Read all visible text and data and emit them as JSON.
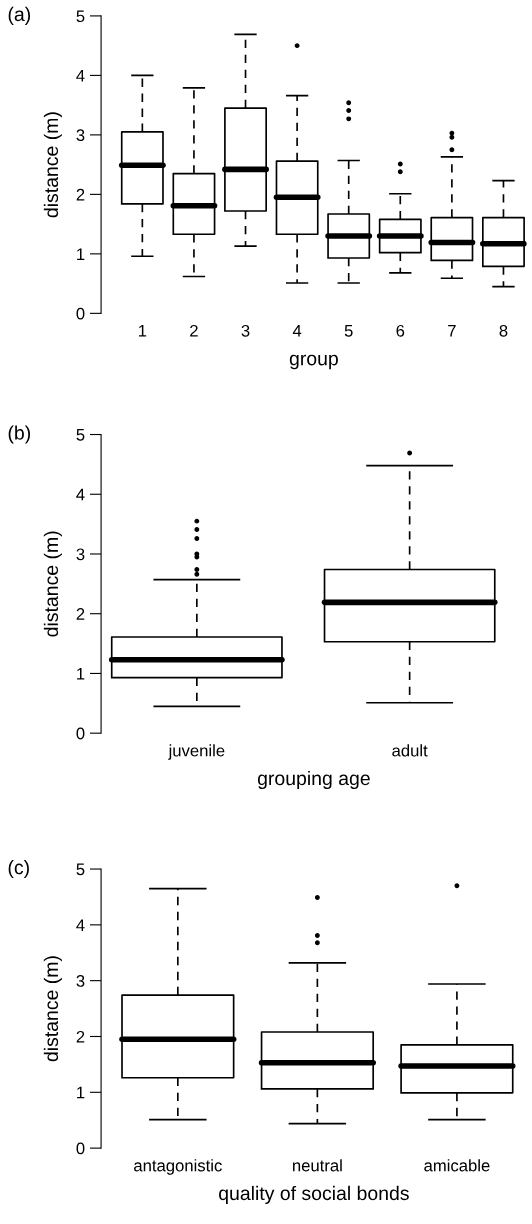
{
  "chart_data": [
    {
      "type": "box",
      "title": "(a)",
      "xlabel": "group",
      "ylabel": "distance (m)",
      "color": "#000000",
      "categories": [
        "1",
        "2",
        "3",
        "4",
        "5",
        "6",
        "7",
        "8"
      ],
      "ylim": [
        0,
        5
      ],
      "yticks": [
        0,
        1,
        2,
        3,
        4,
        5
      ],
      "boxes": [
        {
          "low": 0.96,
          "q1": 1.84,
          "median": 2.49,
          "q3": 3.05,
          "high": 4.0
        },
        {
          "low": 0.62,
          "q1": 1.33,
          "median": 1.81,
          "q3": 2.35,
          "high": 3.79
        },
        {
          "low": 1.13,
          "q1": 1.72,
          "median": 2.42,
          "q3": 3.45,
          "high": 4.69
        },
        {
          "low": 0.51,
          "q1": 1.33,
          "median": 1.95,
          "q3": 2.56,
          "high": 3.66,
          "outliers": [
            4.5
          ]
        },
        {
          "low": 0.51,
          "q1": 0.93,
          "median": 1.3,
          "q3": 1.67,
          "high": 2.57,
          "outliers": [
            3.54,
            3.41,
            3.27
          ]
        },
        {
          "low": 0.68,
          "q1": 1.02,
          "median": 1.3,
          "q3": 1.58,
          "high": 2.01,
          "outliers": [
            2.51,
            2.38
          ]
        },
        {
          "low": 0.59,
          "q1": 0.89,
          "median": 1.19,
          "q3": 1.61,
          "high": 2.63,
          "outliers": [
            3.03,
            2.96,
            2.75
          ]
        },
        {
          "low": 0.45,
          "q1": 0.79,
          "median": 1.17,
          "q3": 1.61,
          "high": 2.23
        }
      ]
    },
    {
      "type": "box",
      "title": "(b)",
      "xlabel": "grouping age",
      "ylabel": "distance (m)",
      "color": "#000000",
      "categories": [
        "juvenile",
        "adult"
      ],
      "ylim": [
        0,
        5
      ],
      "yticks": [
        0,
        1,
        2,
        3,
        4,
        5
      ],
      "boxes": [
        {
          "low": 0.45,
          "q1": 0.93,
          "median": 1.23,
          "q3": 1.61,
          "high": 2.57,
          "outliers": [
            3.55,
            3.41,
            3.26,
            3.0,
            2.95,
            2.74,
            2.66
          ]
        },
        {
          "low": 0.51,
          "q1": 1.53,
          "median": 2.19,
          "q3": 2.74,
          "high": 4.48,
          "outliers": [
            4.69
          ]
        }
      ]
    },
    {
      "type": "box",
      "title": "(c)",
      "xlabel": "quality of social bonds",
      "ylabel": "distance (m)",
      "color": "#000000",
      "categories": [
        "antagonistic",
        "neutral",
        "amicable"
      ],
      "ylim": [
        0,
        5
      ],
      "yticks": [
        0,
        1,
        2,
        3,
        4,
        5
      ],
      "boxes": [
        {
          "low": 0.51,
          "q1": 1.26,
          "median": 1.95,
          "q3": 2.74,
          "high": 4.65
        },
        {
          "low": 0.44,
          "q1": 1.06,
          "median": 1.53,
          "q3": 2.08,
          "high": 3.32,
          "outliers": [
            4.49,
            3.81,
            3.68
          ]
        },
        {
          "low": 0.51,
          "q1": 0.99,
          "median": 1.47,
          "q3": 1.85,
          "high": 2.94,
          "outliers": [
            4.7
          ]
        }
      ]
    }
  ]
}
